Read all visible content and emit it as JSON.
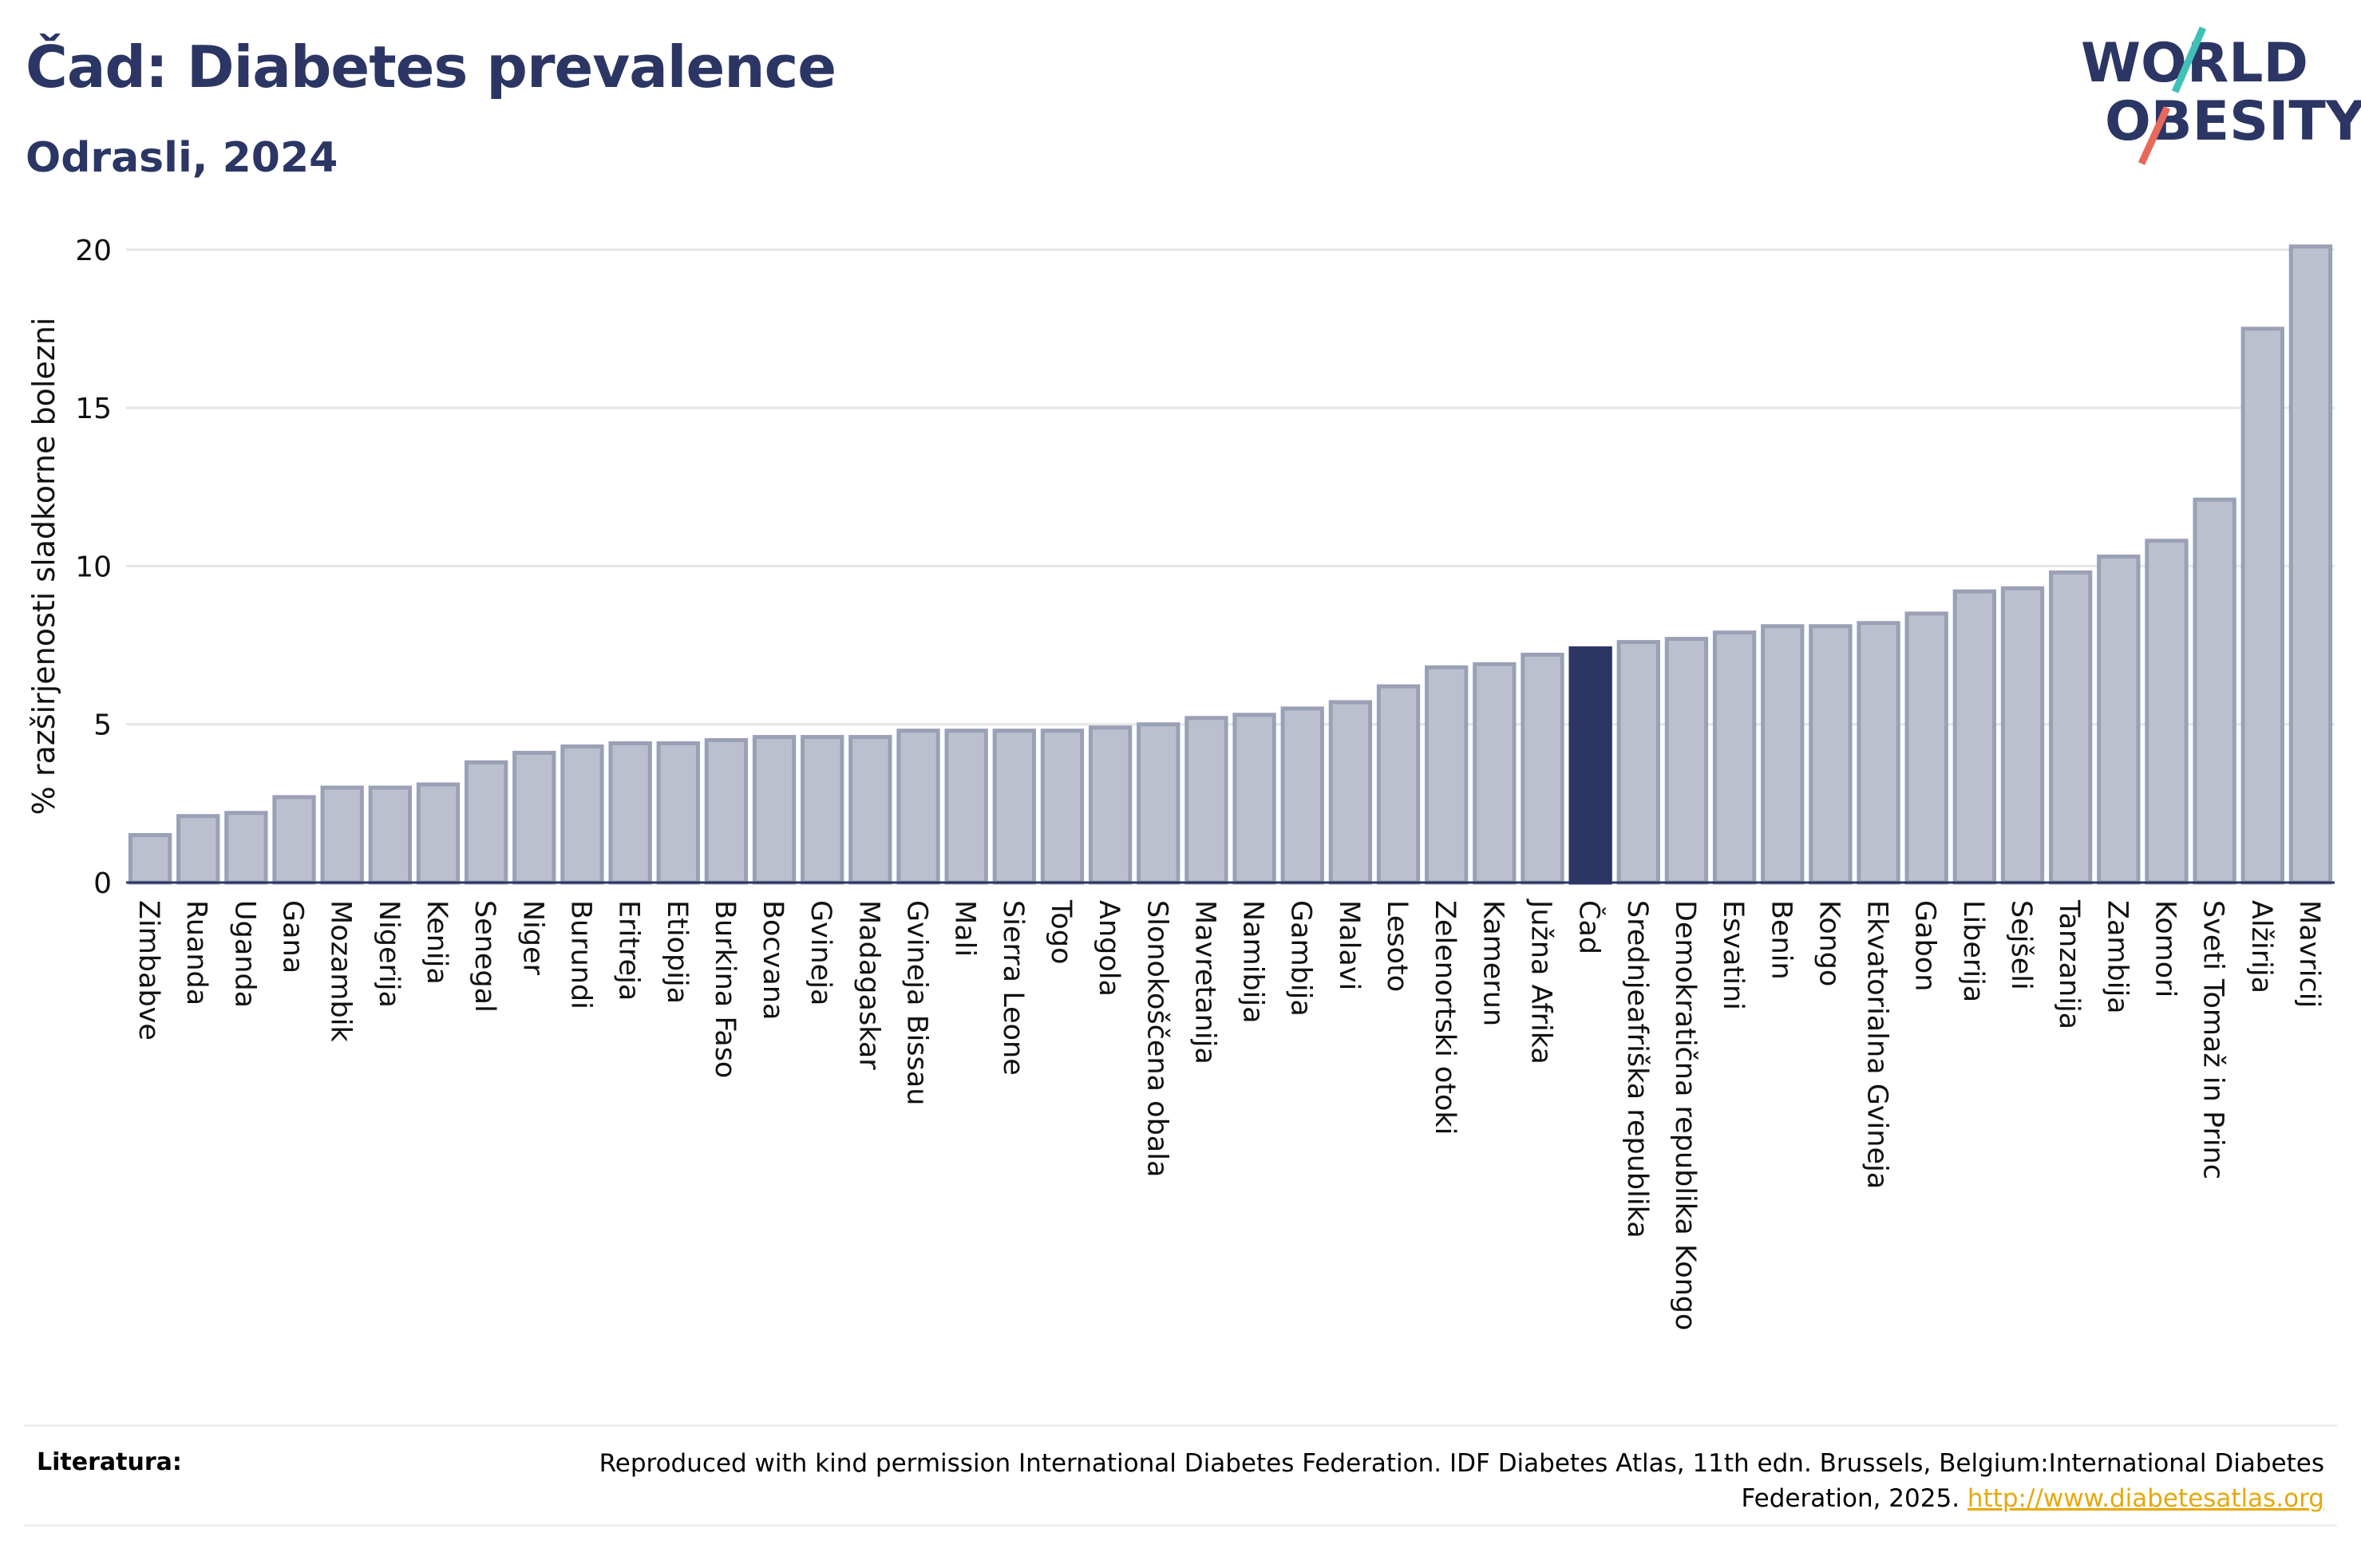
{
  "header": {
    "title": "Čad: Diabetes prevalence",
    "subtitle": "Odrasli, 2024"
  },
  "logo": {
    "line1": "WORLD",
    "line2": "OBESITY",
    "colors": {
      "text": "#2b3664",
      "slash_top": "#3fc1b8",
      "slash_bottom": "#e8685a"
    }
  },
  "colors": {
    "bar": "#bcc0ce",
    "bar_stroke": "#9aa0b6",
    "highlight": "#2b3664",
    "grid": "#e6e6e6",
    "axis": "#2b3664"
  },
  "chart_data": {
    "type": "bar",
    "title": "Čad: Diabetes prevalence",
    "subtitle": "Odrasli, 2024",
    "xlabel": "",
    "ylabel": "% razširjenosti sladkorne bolezni",
    "ylim": [
      0,
      20.5
    ],
    "yticks": [
      0,
      5,
      10,
      15,
      20
    ],
    "grid": true,
    "highlight": "Čad",
    "categories": [
      "Zimbabve",
      "Ruanda",
      "Uganda",
      "Gana",
      "Mozambik",
      "Nigerija",
      "Kenija",
      "Senegal",
      "Niger",
      "Burundi",
      "Eritreja",
      "Etiopija",
      "Burkina Faso",
      "Bocvana",
      "Gvineja",
      "Madagaskar",
      "Gvineja Bissau",
      "Mali",
      "Sierra Leone",
      "Togo",
      "Angola",
      "Slonokoščena obala",
      "Mavretanija",
      "Namibija",
      "Gambija",
      "Malavi",
      "Lesoto",
      "Zelenortski otoki",
      "Kamerun",
      "Južna Afrika",
      "Čad",
      "Srednjeafriška republika",
      "Demokratična republika Kongo",
      "Esvatini",
      "Benin",
      "Kongo",
      "Ekvatorialna Gvineja",
      "Gabon",
      "Liberija",
      "Sejšeli",
      "Tanzanija",
      "Zambija",
      "Komori",
      "Sveti Tomaž in Princ",
      "Alžirija",
      "Mavricij"
    ],
    "values": [
      1.5,
      2.1,
      2.2,
      2.7,
      3.0,
      3.0,
      3.1,
      3.8,
      4.1,
      4.3,
      4.4,
      4.4,
      4.5,
      4.6,
      4.6,
      4.6,
      4.8,
      4.8,
      4.8,
      4.8,
      4.9,
      5.0,
      5.2,
      5.3,
      5.5,
      5.7,
      6.2,
      6.8,
      6.9,
      7.2,
      7.4,
      7.6,
      7.7,
      7.9,
      8.1,
      8.1,
      8.2,
      8.5,
      9.2,
      9.3,
      9.8,
      10.3,
      10.8,
      12.1,
      17.5,
      20.1
    ]
  },
  "footer": {
    "label": "Literatura:",
    "text": "Reproduced with kind permission International Diabetes Federation. IDF Diabetes Atlas, 11th edn. Brussels, Belgium:International Diabetes Federation, 2025.",
    "link": "http://www.diabetesatlas.org"
  }
}
